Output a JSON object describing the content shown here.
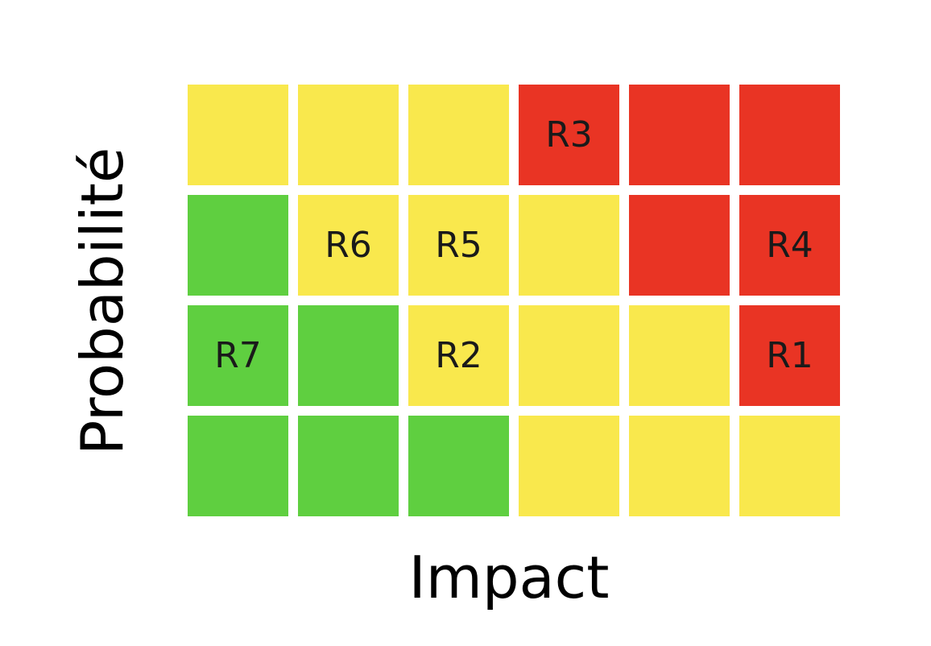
{
  "chart_data": {
    "type": "heatmap",
    "xlabel": "Impact",
    "ylabel": "Probabilité",
    "rows": 4,
    "cols": 6,
    "levels": {
      "low": "#5fcf40",
      "medium": "#f9e84d",
      "high": "#e93424"
    },
    "grid": [
      [
        "medium",
        "medium",
        "medium",
        "high",
        "high",
        "high"
      ],
      [
        "low",
        "medium",
        "medium",
        "medium",
        "high",
        "high"
      ],
      [
        "low",
        "low",
        "medium",
        "medium",
        "medium",
        "high"
      ],
      [
        "low",
        "low",
        "low",
        "medium",
        "medium",
        "medium"
      ]
    ],
    "risks": [
      {
        "label": "R1",
        "impact": 6,
        "probability": 2
      },
      {
        "label": "R2",
        "impact": 3,
        "probability": 2
      },
      {
        "label": "R3",
        "impact": 4,
        "probability": 4
      },
      {
        "label": "R4",
        "impact": 6,
        "probability": 3
      },
      {
        "label": "R5",
        "impact": 3,
        "probability": 3
      },
      {
        "label": "R6",
        "impact": 2,
        "probability": 3
      },
      {
        "label": "R7",
        "impact": 1,
        "probability": 2
      }
    ]
  }
}
